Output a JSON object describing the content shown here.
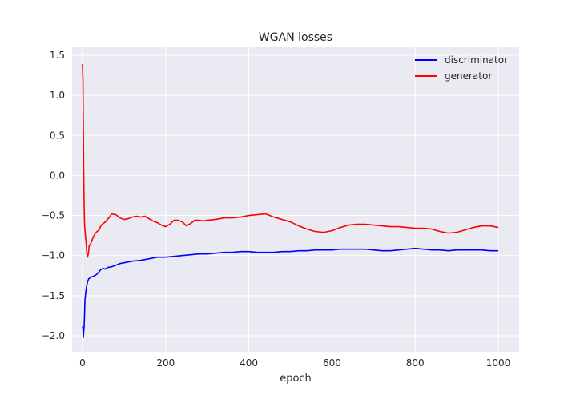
{
  "chart_data": {
    "type": "line",
    "title": "WGAN losses",
    "xlabel": "epoch",
    "ylabel": "",
    "xlim": [
      -25,
      1050
    ],
    "ylim": [
      -2.2,
      1.6
    ],
    "xticks": [
      0,
      200,
      400,
      600,
      800,
      1000
    ],
    "yticks": [
      -2.0,
      -1.5,
      -1.0,
      -0.5,
      0.0,
      0.5,
      1.0,
      1.5
    ],
    "xtick_labels": [
      "0",
      "200",
      "400",
      "600",
      "800",
      "1000"
    ],
    "ytick_labels": [
      "−2.0",
      "−1.5",
      "−1.0",
      "−0.5",
      "0.0",
      "0.5",
      "1.0",
      "1.5"
    ],
    "grid": true,
    "legend_position": "upper right",
    "series": [
      {
        "name": "discriminator",
        "color": "#0000ff",
        "points": [
          [
            0,
            -1.88
          ],
          [
            1,
            -1.9
          ],
          [
            2,
            -2.02
          ],
          [
            3,
            -1.95
          ],
          [
            4,
            -1.88
          ],
          [
            5,
            -1.72
          ],
          [
            6,
            -1.55
          ],
          [
            8,
            -1.45
          ],
          [
            10,
            -1.38
          ],
          [
            12,
            -1.33
          ],
          [
            15,
            -1.29
          ],
          [
            20,
            -1.27
          ],
          [
            25,
            -1.26
          ],
          [
            30,
            -1.25
          ],
          [
            35,
            -1.23
          ],
          [
            40,
            -1.2
          ],
          [
            45,
            -1.17
          ],
          [
            50,
            -1.16
          ],
          [
            55,
            -1.17
          ],
          [
            60,
            -1.15
          ],
          [
            70,
            -1.14
          ],
          [
            80,
            -1.12
          ],
          [
            90,
            -1.1
          ],
          [
            100,
            -1.09
          ],
          [
            120,
            -1.07
          ],
          [
            140,
            -1.06
          ],
          [
            160,
            -1.04
          ],
          [
            180,
            -1.02
          ],
          [
            200,
            -1.02
          ],
          [
            220,
            -1.01
          ],
          [
            240,
            -1.0
          ],
          [
            260,
            -0.99
          ],
          [
            280,
            -0.98
          ],
          [
            300,
            -0.98
          ],
          [
            320,
            -0.97
          ],
          [
            340,
            -0.96
          ],
          [
            360,
            -0.96
          ],
          [
            380,
            -0.95
          ],
          [
            400,
            -0.95
          ],
          [
            420,
            -0.96
          ],
          [
            440,
            -0.96
          ],
          [
            460,
            -0.96
          ],
          [
            480,
            -0.95
          ],
          [
            500,
            -0.95
          ],
          [
            520,
            -0.94
          ],
          [
            540,
            -0.94
          ],
          [
            560,
            -0.93
          ],
          [
            580,
            -0.93
          ],
          [
            600,
            -0.93
          ],
          [
            620,
            -0.92
          ],
          [
            640,
            -0.92
          ],
          [
            660,
            -0.92
          ],
          [
            680,
            -0.92
          ],
          [
            700,
            -0.93
          ],
          [
            720,
            -0.94
          ],
          [
            740,
            -0.94
          ],
          [
            760,
            -0.93
          ],
          [
            780,
            -0.92
          ],
          [
            800,
            -0.91
          ],
          [
            820,
            -0.92
          ],
          [
            840,
            -0.93
          ],
          [
            860,
            -0.93
          ],
          [
            880,
            -0.94
          ],
          [
            900,
            -0.93
          ],
          [
            920,
            -0.93
          ],
          [
            940,
            -0.93
          ],
          [
            960,
            -0.93
          ],
          [
            980,
            -0.94
          ],
          [
            1000,
            -0.94
          ]
        ]
      },
      {
        "name": "generator",
        "color": "#ff0000",
        "points": [
          [
            0,
            1.39
          ],
          [
            1,
            1.2
          ],
          [
            2,
            0.6
          ],
          [
            3,
            0.0
          ],
          [
            4,
            -0.4
          ],
          [
            5,
            -0.62
          ],
          [
            7,
            -0.75
          ],
          [
            9,
            -0.85
          ],
          [
            10,
            -0.95
          ],
          [
            12,
            -1.02
          ],
          [
            14,
            -0.98
          ],
          [
            16,
            -0.88
          ],
          [
            20,
            -0.85
          ],
          [
            25,
            -0.78
          ],
          [
            30,
            -0.73
          ],
          [
            35,
            -0.7
          ],
          [
            40,
            -0.68
          ],
          [
            45,
            -0.62
          ],
          [
            50,
            -0.6
          ],
          [
            55,
            -0.58
          ],
          [
            60,
            -0.55
          ],
          [
            65,
            -0.52
          ],
          [
            70,
            -0.48
          ],
          [
            80,
            -0.49
          ],
          [
            90,
            -0.53
          ],
          [
            100,
            -0.55
          ],
          [
            110,
            -0.54
          ],
          [
            120,
            -0.52
          ],
          [
            130,
            -0.51
          ],
          [
            140,
            -0.52
          ],
          [
            150,
            -0.51
          ],
          [
            160,
            -0.54
          ],
          [
            170,
            -0.57
          ],
          [
            180,
            -0.59
          ],
          [
            190,
            -0.62
          ],
          [
            200,
            -0.64
          ],
          [
            210,
            -0.61
          ],
          [
            220,
            -0.56
          ],
          [
            230,
            -0.56
          ],
          [
            240,
            -0.58
          ],
          [
            250,
            -0.63
          ],
          [
            260,
            -0.6
          ],
          [
            270,
            -0.56
          ],
          [
            280,
            -0.56
          ],
          [
            290,
            -0.57
          ],
          [
            300,
            -0.56
          ],
          [
            320,
            -0.55
          ],
          [
            340,
            -0.53
          ],
          [
            360,
            -0.53
          ],
          [
            380,
            -0.52
          ],
          [
            400,
            -0.5
          ],
          [
            420,
            -0.49
          ],
          [
            440,
            -0.48
          ],
          [
            460,
            -0.52
          ],
          [
            480,
            -0.55
          ],
          [
            500,
            -0.58
          ],
          [
            520,
            -0.63
          ],
          [
            540,
            -0.67
          ],
          [
            560,
            -0.7
          ],
          [
            580,
            -0.71
          ],
          [
            600,
            -0.69
          ],
          [
            620,
            -0.65
          ],
          [
            640,
            -0.62
          ],
          [
            660,
            -0.61
          ],
          [
            680,
            -0.61
          ],
          [
            700,
            -0.62
          ],
          [
            720,
            -0.63
          ],
          [
            740,
            -0.64
          ],
          [
            760,
            -0.64
          ],
          [
            780,
            -0.65
          ],
          [
            800,
            -0.66
          ],
          [
            820,
            -0.66
          ],
          [
            840,
            -0.67
          ],
          [
            860,
            -0.7
          ],
          [
            880,
            -0.72
          ],
          [
            900,
            -0.71
          ],
          [
            920,
            -0.68
          ],
          [
            940,
            -0.65
          ],
          [
            960,
            -0.63
          ],
          [
            980,
            -0.63
          ],
          [
            1000,
            -0.65
          ]
        ]
      }
    ]
  }
}
